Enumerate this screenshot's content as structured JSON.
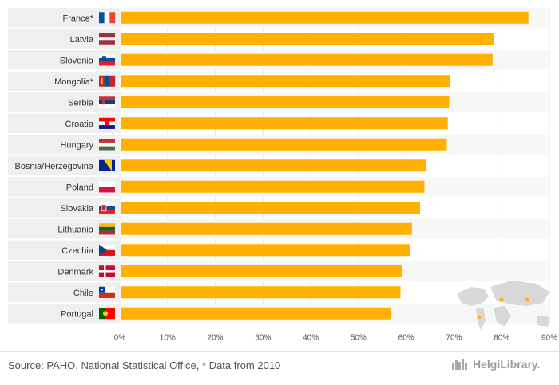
{
  "chart_data": {
    "type": "bar",
    "orientation": "horizontal",
    "categories": [
      "France*",
      "Latvia",
      "Slovenia",
      "Mongolia*",
      "Serbia",
      "Croatia",
      "Hungary",
      "Bosnia/Herzegovina",
      "Poland",
      "Slovakia",
      "Lithuania",
      "Czechia",
      "Denmark",
      "Chile",
      "Portugal"
    ],
    "values": [
      85.6,
      78.3,
      78.1,
      69.2,
      69.0,
      68.7,
      68.5,
      64.2,
      63.8,
      62.9,
      61.2,
      60.8,
      59.1,
      58.8,
      56.9
    ],
    "flags": [
      "france-flag",
      "latvia-flag",
      "slovenia-flag",
      "mongolia-flag",
      "serbia-flag",
      "croatia-flag",
      "hungary-flag",
      "bosnia-herzegovina-flag",
      "poland-flag",
      "slovakia-flag",
      "lithuania-flag",
      "czechia-flag",
      "denmark-flag",
      "chile-flag",
      "portugal-flag"
    ],
    "xlim": [
      0,
      90
    ],
    "ticks": [
      0,
      10,
      20,
      30,
      40,
      50,
      60,
      70,
      80,
      90
    ],
    "tick_labels": [
      "0%",
      "10%",
      "20%",
      "30%",
      "40%",
      "50%",
      "60%",
      "70%",
      "80%",
      "90%"
    ],
    "grid": true,
    "bar_color": "#FFB000",
    "label_bg_color": "#EFEFEF"
  },
  "footer": {
    "source": "Source: PAHO, National Statistical Office, * Data from 2010",
    "brand": "HelgiLibrary."
  }
}
